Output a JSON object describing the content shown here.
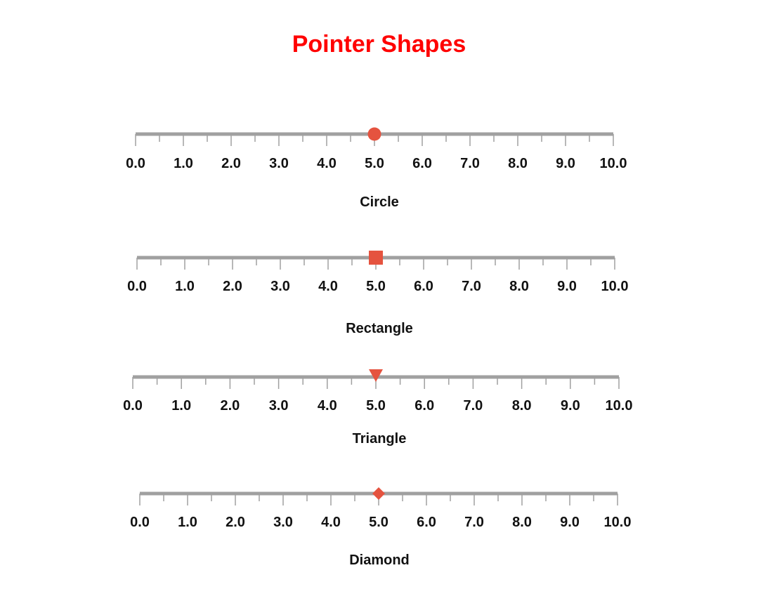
{
  "title": "Pointer Shapes",
  "chart_data": {
    "type": "linear-gauge",
    "title": "Pointer Shapes",
    "axis": {
      "min": 0,
      "max": 10,
      "major_interval": 1,
      "minor_interval": 0.5,
      "tick_labels": [
        "0.0",
        "1.0",
        "2.0",
        "3.0",
        "4.0",
        "5.0",
        "6.0",
        "7.0",
        "8.0",
        "9.0",
        "10.0"
      ]
    },
    "gauges": [
      {
        "label": "Circle",
        "pointer_shape": "circle",
        "value": 5.0
      },
      {
        "label": "Rectangle",
        "pointer_shape": "rectangle",
        "value": 5.0
      },
      {
        "label": "Triangle",
        "pointer_shape": "triangle",
        "value": 5.0
      },
      {
        "label": "Diamond",
        "pointer_shape": "diamond",
        "value": 5.0
      }
    ],
    "colors": {
      "title": "#ff0000",
      "pointer": "#e5533f",
      "axis_line": "#a0a0a0",
      "tick": "#a0a0a0",
      "label": "#111111"
    }
  }
}
